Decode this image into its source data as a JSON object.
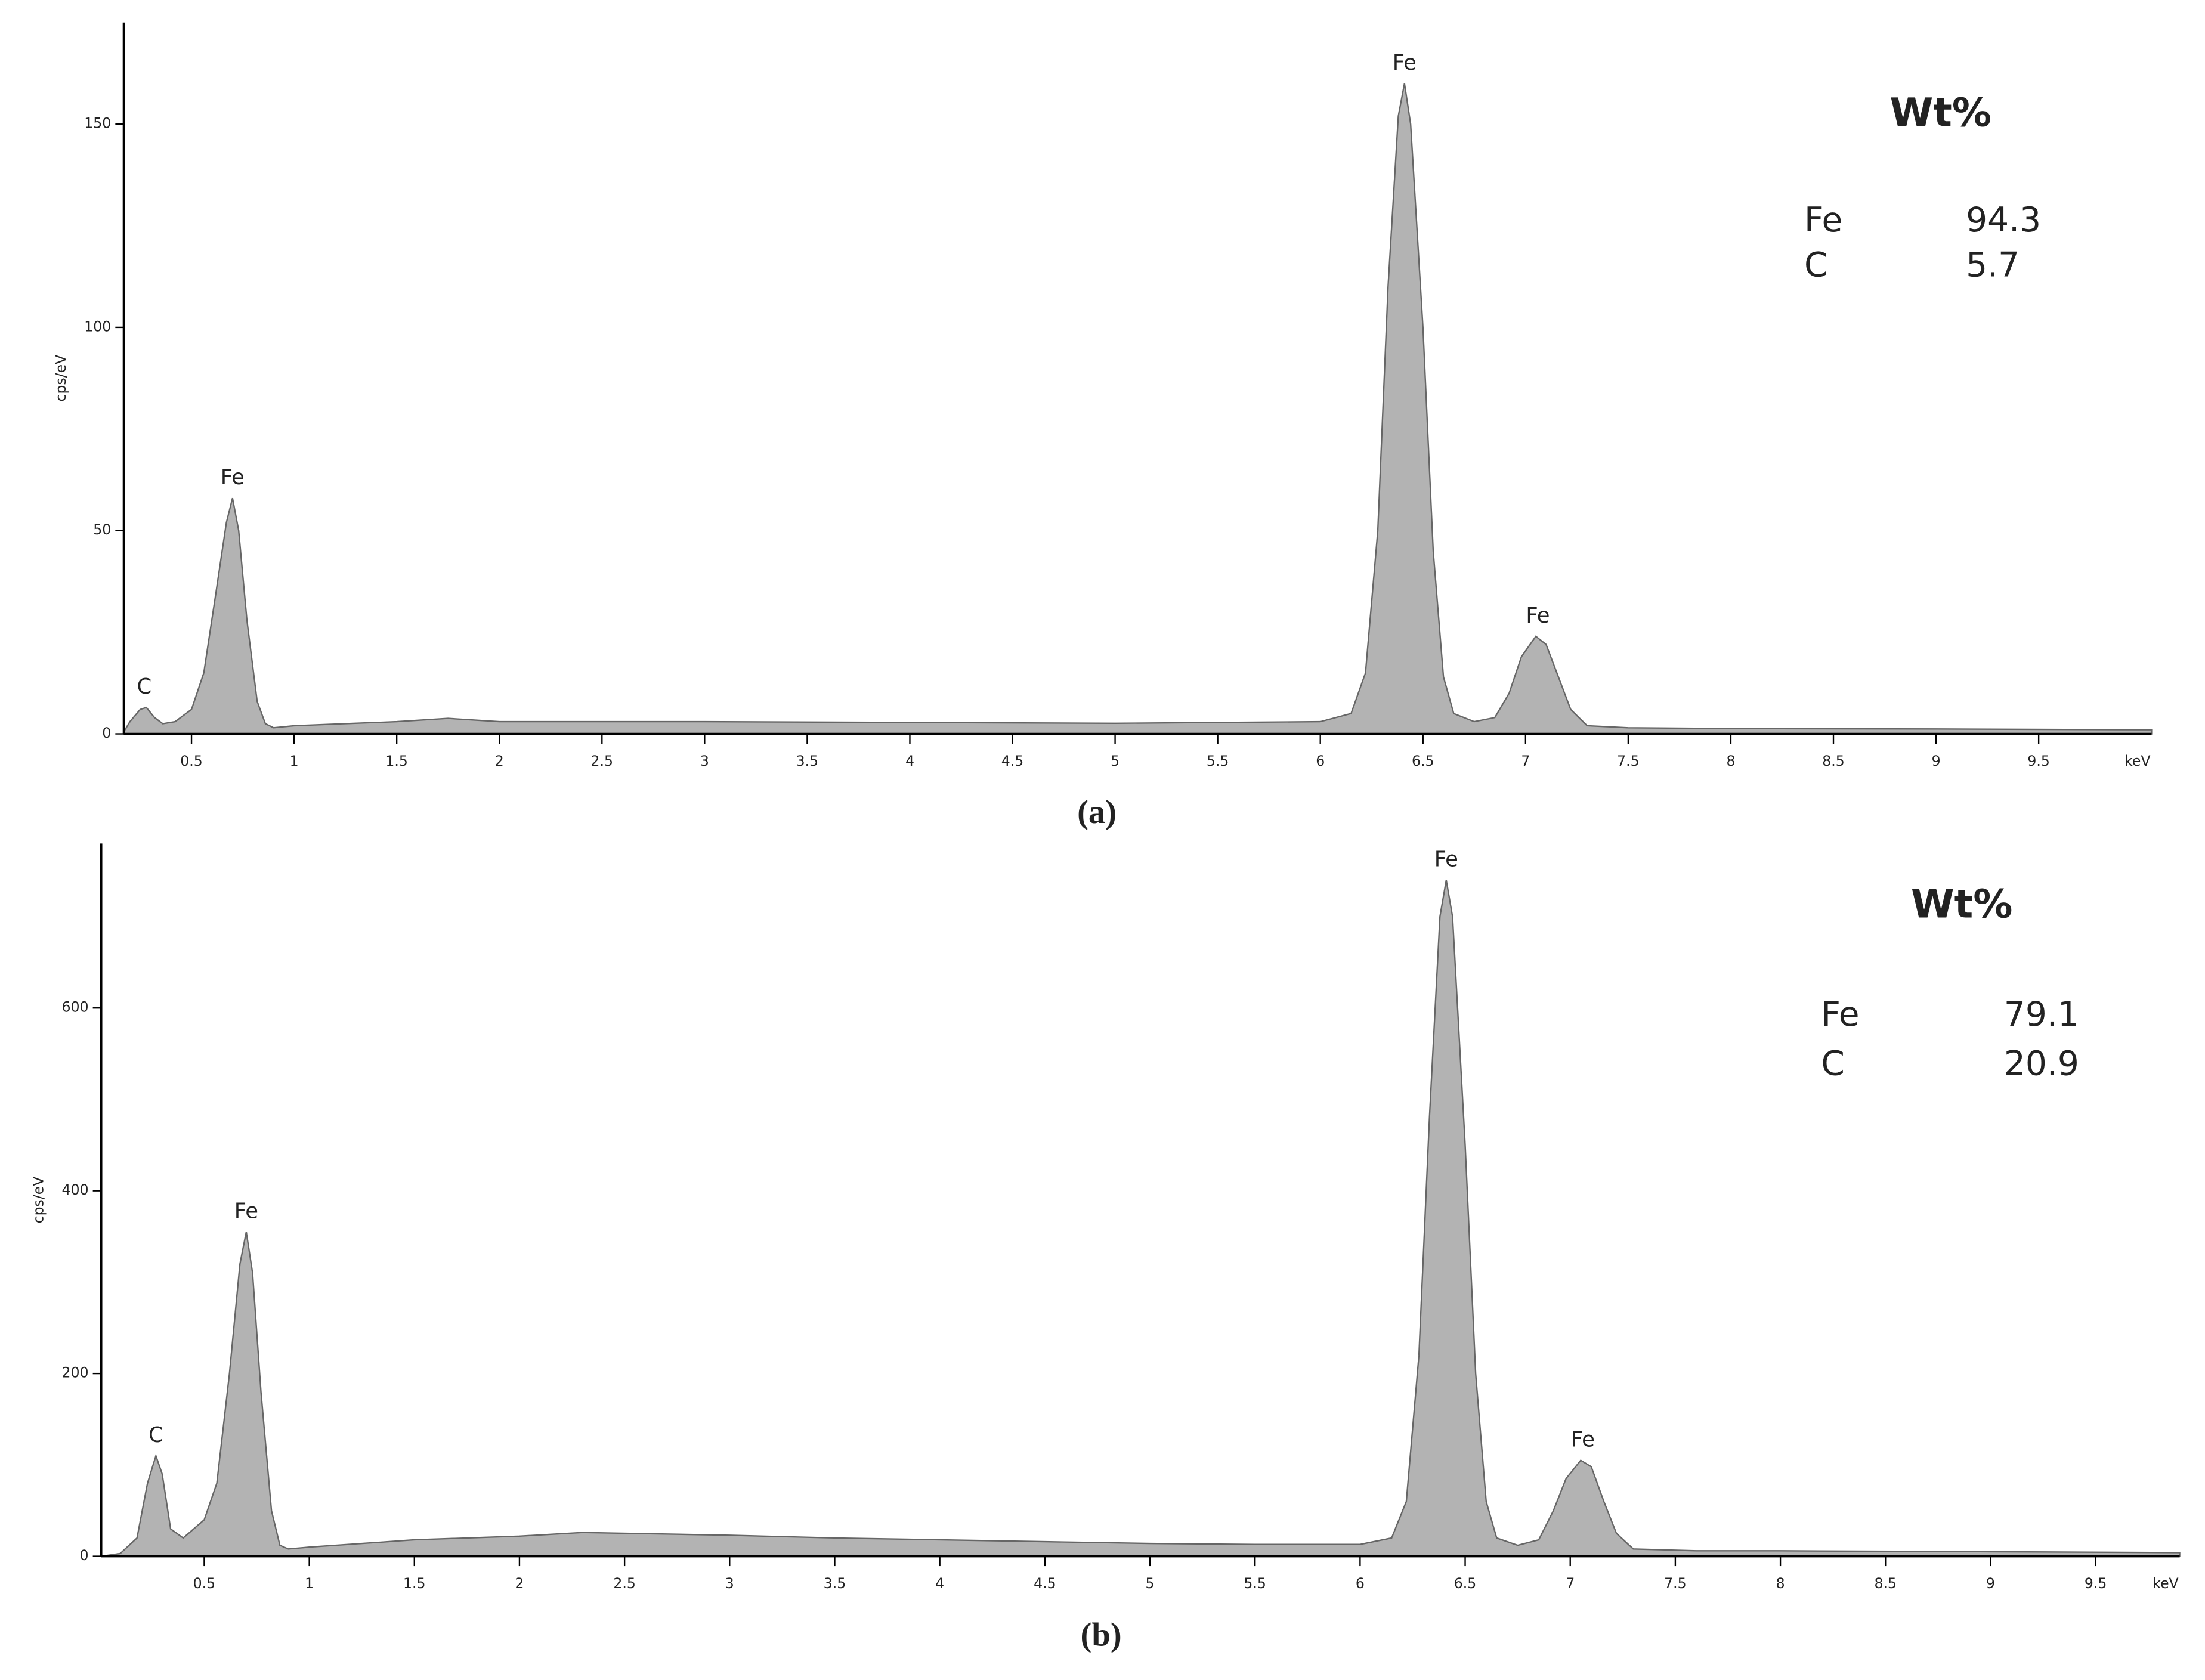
{
  "chart_data": [
    {
      "type": "area",
      "panel_label": "(a)",
      "ylabel": "cps/eV",
      "xlabel": "keV",
      "color": "#b3b3b3",
      "line_color": "#666666",
      "xlim": [
        0.17,
        10.05
      ],
      "ylim": [
        0,
        175
      ],
      "xticks": [
        0.5,
        1,
        1.5,
        2,
        2.5,
        3,
        3.5,
        4,
        4.5,
        5,
        5.5,
        6,
        6.5,
        7,
        7.5,
        8,
        8.5,
        9,
        9.5
      ],
      "yticks": [
        0,
        50,
        100,
        150
      ],
      "x": [
        0.17,
        0.2,
        0.25,
        0.28,
        0.32,
        0.36,
        0.42,
        0.5,
        0.56,
        0.62,
        0.67,
        0.7,
        0.73,
        0.77,
        0.82,
        0.86,
        0.9,
        1.0,
        1.5,
        1.75,
        2,
        3,
        4,
        5,
        5.5,
        6,
        6.15,
        6.22,
        6.28,
        6.33,
        6.38,
        6.41,
        6.44,
        6.5,
        6.55,
        6.6,
        6.65,
        6.75,
        6.85,
        6.92,
        6.98,
        7.05,
        7.1,
        7.16,
        7.22,
        7.3,
        7.5,
        8,
        9,
        10.05
      ],
      "values": [
        0.5,
        3,
        6,
        6.5,
        4,
        2.5,
        3,
        6,
        15,
        35,
        52,
        58,
        50,
        28,
        8,
        2.5,
        1.5,
        2,
        3,
        3.8,
        3,
        3,
        2.8,
        2.6,
        2.8,
        3,
        5,
        15,
        50,
        110,
        152,
        160,
        150,
        100,
        45,
        14,
        5,
        3,
        4,
        10,
        19,
        24,
        22,
        14,
        6,
        2,
        1.5,
        1.3,
        1.2,
        1
      ],
      "peak_labels": [
        {
          "text": "C",
          "x": 0.27,
          "y": 6.5
        },
        {
          "text": "Fe",
          "x": 0.7,
          "y": 58
        },
        {
          "text": "Fe",
          "x": 6.41,
          "y": 160
        },
        {
          "text": "Fe",
          "x": 7.06,
          "y": 24
        }
      ],
      "composition": {
        "title": "Wt%",
        "rows": [
          [
            "Fe",
            "94.3"
          ],
          [
            "C",
            "5.7"
          ]
        ]
      }
    },
    {
      "type": "area",
      "panel_label": "(b)",
      "ylabel": "cps/eV",
      "xlabel": "keV",
      "color": "#b3b3b3",
      "line_color": "#666666",
      "xlim": [
        0.01,
        9.9
      ],
      "ylim": [
        0,
        780
      ],
      "xticks": [
        0.5,
        1,
        1.5,
        2,
        2.5,
        3,
        3.5,
        4,
        4.5,
        5,
        5.5,
        6,
        6.5,
        7,
        7.5,
        8,
        8.5,
        9,
        9.5
      ],
      "yticks": [
        0,
        200,
        400,
        600
      ],
      "x": [
        0.01,
        0.1,
        0.18,
        0.23,
        0.27,
        0.3,
        0.34,
        0.4,
        0.5,
        0.56,
        0.62,
        0.67,
        0.7,
        0.73,
        0.77,
        0.82,
        0.86,
        0.9,
        1.0,
        1.5,
        2,
        2.3,
        3,
        3.5,
        4.5,
        5,
        5.5,
        6,
        6.15,
        6.22,
        6.28,
        6.33,
        6.38,
        6.41,
        6.44,
        6.5,
        6.55,
        6.6,
        6.65,
        6.75,
        6.85,
        6.92,
        6.98,
        7.05,
        7.1,
        7.16,
        7.22,
        7.3,
        7.6,
        8,
        9,
        9.9
      ],
      "values": [
        0,
        3,
        20,
        80,
        110,
        90,
        30,
        20,
        40,
        80,
        200,
        320,
        355,
        310,
        180,
        50,
        12,
        8,
        10,
        18,
        22,
        26,
        23,
        20,
        16,
        14,
        13,
        13,
        20,
        60,
        220,
        480,
        700,
        740,
        700,
        450,
        200,
        60,
        20,
        12,
        18,
        50,
        85,
        105,
        98,
        60,
        25,
        8,
        6,
        6,
        5,
        4
      ],
      "peak_labels": [
        {
          "text": "C",
          "x": 0.27,
          "y": 110
        },
        {
          "text": "Fe",
          "x": 0.7,
          "y": 355
        },
        {
          "text": "Fe",
          "x": 6.41,
          "y": 740
        },
        {
          "text": "Fe",
          "x": 7.06,
          "y": 105
        }
      ],
      "composition": {
        "title": "Wt%",
        "rows": [
          [
            "Fe",
            "79.1"
          ],
          [
            "C",
            "20.9"
          ]
        ]
      }
    }
  ]
}
